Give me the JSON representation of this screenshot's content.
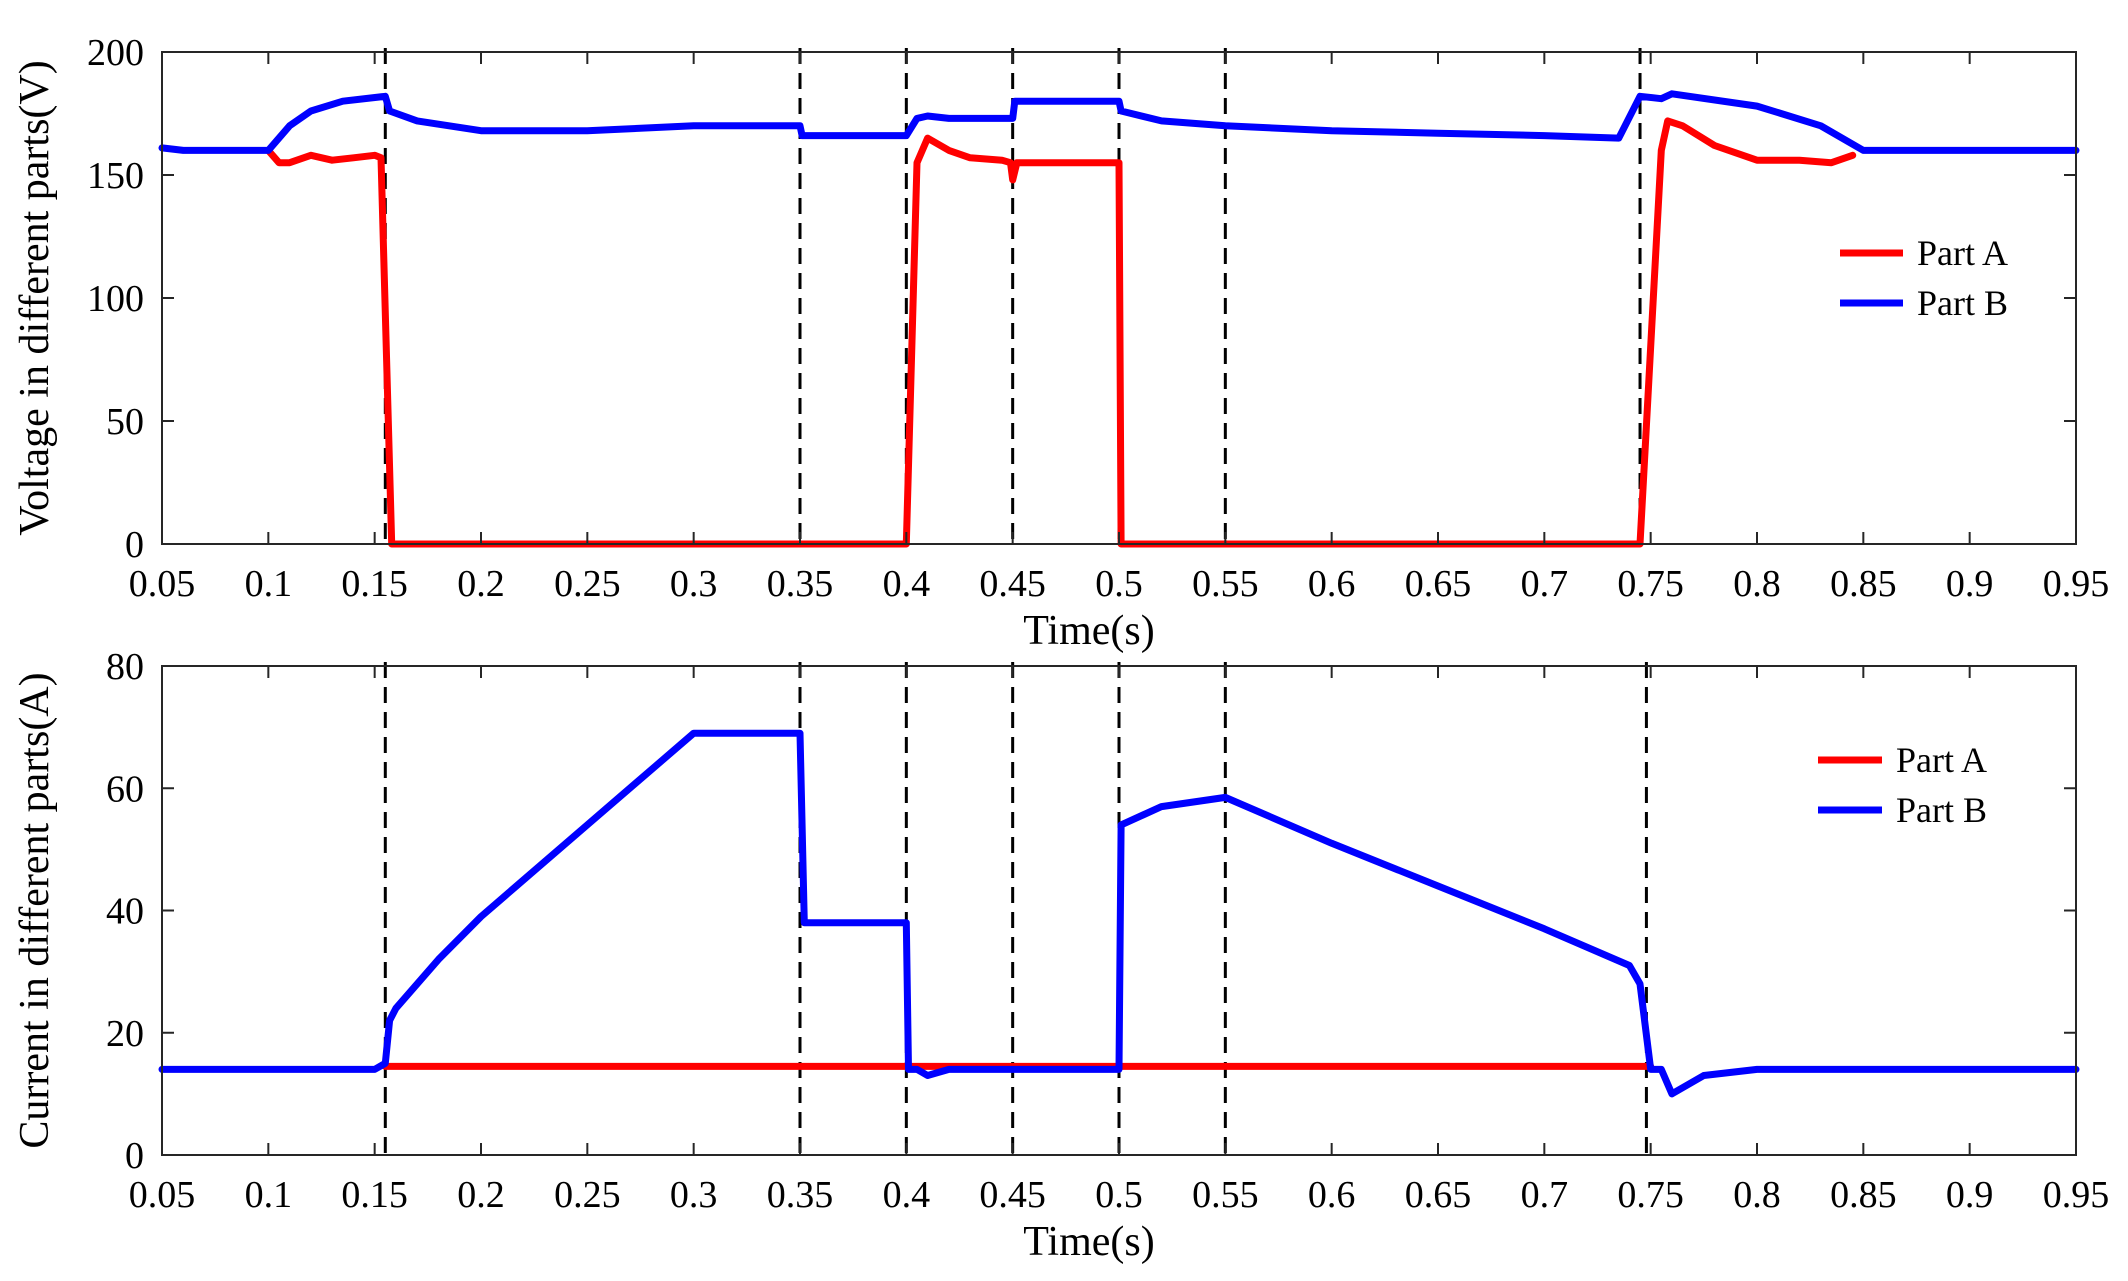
{
  "chart_data": [
    {
      "type": "line",
      "xlabel": "Time(s)",
      "ylabel": "Voltage in different parts(V)",
      "xlim": [
        0.05,
        0.95
      ],
      "ylim": [
        0,
        200
      ],
      "xticks": [
        "0.05",
        "0.1",
        "0.15",
        "0.2",
        "0.25",
        "0.3",
        "0.35",
        "0.4",
        "0.45",
        "0.5",
        "0.55",
        "0.6",
        "0.65",
        "0.7",
        "0.75",
        "0.8",
        "0.85",
        "0.9",
        "0.95"
      ],
      "yticks": [
        "0",
        "50",
        "100",
        "150",
        "200"
      ],
      "vlines": [
        0.155,
        0.35,
        0.4,
        0.45,
        0.5,
        0.55,
        0.745
      ],
      "legend_position": "right",
      "colors": {
        "Part A": "#ff0000",
        "Part B": "#0000ff",
        "vlines": "#000000"
      },
      "series": [
        {
          "name": "Part A",
          "points": [
            [
              0.1,
              160
            ],
            [
              0.105,
              155
            ],
            [
              0.11,
              155
            ],
            [
              0.12,
              158
            ],
            [
              0.13,
              156
            ],
            [
              0.14,
              157
            ],
            [
              0.15,
              158
            ],
            [
              0.153,
              157
            ],
            [
              0.158,
              0
            ],
            [
              0.4,
              0
            ],
            [
              0.405,
              155
            ],
            [
              0.41,
              165
            ],
            [
              0.42,
              160
            ],
            [
              0.43,
              157
            ],
            [
              0.445,
              156
            ],
            [
              0.449,
              155
            ],
            [
              0.45,
              148
            ],
            [
              0.452,
              155
            ],
            [
              0.5,
              155
            ],
            [
              0.501,
              0
            ],
            [
              0.745,
              0
            ],
            [
              0.755,
              160
            ],
            [
              0.758,
              172
            ],
            [
              0.765,
              170
            ],
            [
              0.78,
              162
            ],
            [
              0.8,
              156
            ],
            [
              0.82,
              156
            ],
            [
              0.835,
              155
            ],
            [
              0.845,
              158
            ]
          ]
        },
        {
          "name": "Part B",
          "points": [
            [
              0.05,
              161
            ],
            [
              0.06,
              160
            ],
            [
              0.1,
              160
            ],
            [
              0.11,
              170
            ],
            [
              0.12,
              176
            ],
            [
              0.135,
              180
            ],
            [
              0.155,
              182
            ],
            [
              0.157,
              176
            ],
            [
              0.17,
              172
            ],
            [
              0.2,
              168
            ],
            [
              0.25,
              168
            ],
            [
              0.3,
              170
            ],
            [
              0.35,
              170
            ],
            [
              0.351,
              166
            ],
            [
              0.4,
              166
            ],
            [
              0.405,
              173
            ],
            [
              0.41,
              174
            ],
            [
              0.42,
              173
            ],
            [
              0.45,
              173
            ],
            [
              0.451,
              180
            ],
            [
              0.5,
              180
            ],
            [
              0.501,
              176
            ],
            [
              0.52,
              172
            ],
            [
              0.55,
              170
            ],
            [
              0.6,
              168
            ],
            [
              0.65,
              167
            ],
            [
              0.7,
              166
            ],
            [
              0.735,
              165
            ],
            [
              0.745,
              182
            ],
            [
              0.755,
              181
            ],
            [
              0.76,
              183
            ],
            [
              0.8,
              178
            ],
            [
              0.83,
              170
            ],
            [
              0.85,
              160
            ],
            [
              0.9,
              160
            ],
            [
              0.95,
              160
            ]
          ]
        }
      ]
    },
    {
      "type": "line",
      "xlabel": "Time(s)",
      "ylabel": "Current in different parts(A)",
      "xlim": [
        0.05,
        0.95
      ],
      "ylim": [
        0,
        80
      ],
      "xticks": [
        "0.05",
        "0.1",
        "0.15",
        "0.2",
        "0.25",
        "0.3",
        "0.35",
        "0.4",
        "0.45",
        "0.5",
        "0.55",
        "0.6",
        "0.65",
        "0.7",
        "0.75",
        "0.8",
        "0.85",
        "0.9",
        "0.95"
      ],
      "yticks": [
        "0",
        "20",
        "40",
        "60",
        "80"
      ],
      "vlines": [
        0.155,
        0.35,
        0.4,
        0.45,
        0.5,
        0.55,
        0.748
      ],
      "legend_position": "top-right",
      "colors": {
        "Part A": "#ff0000",
        "Part B": "#0000ff",
        "vlines": "#000000"
      },
      "series": [
        {
          "name": "Part A",
          "points": [
            [
              0.155,
              14.5
            ],
            [
              0.75,
              14.5
            ]
          ]
        },
        {
          "name": "Part B",
          "points": [
            [
              0.05,
              14
            ],
            [
              0.1,
              14
            ],
            [
              0.15,
              14
            ],
            [
              0.155,
              15
            ],
            [
              0.157,
              22
            ],
            [
              0.16,
              24
            ],
            [
              0.18,
              32
            ],
            [
              0.2,
              39
            ],
            [
              0.25,
              54
            ],
            [
              0.3,
              69
            ],
            [
              0.35,
              69
            ],
            [
              0.352,
              38
            ],
            [
              0.4,
              38
            ],
            [
              0.401,
              14
            ],
            [
              0.405,
              14
            ],
            [
              0.41,
              13
            ],
            [
              0.42,
              14
            ],
            [
              0.45,
              14
            ],
            [
              0.5,
              14
            ],
            [
              0.501,
              54
            ],
            [
              0.52,
              57
            ],
            [
              0.55,
              58.5
            ],
            [
              0.6,
              51
            ],
            [
              0.65,
              44
            ],
            [
              0.7,
              37
            ],
            [
              0.74,
              31
            ],
            [
              0.745,
              28
            ],
            [
              0.75,
              14
            ],
            [
              0.755,
              14
            ],
            [
              0.76,
              10
            ],
            [
              0.775,
              13
            ],
            [
              0.8,
              14
            ],
            [
              0.85,
              14
            ],
            [
              0.95,
              14
            ]
          ]
        }
      ]
    }
  ]
}
